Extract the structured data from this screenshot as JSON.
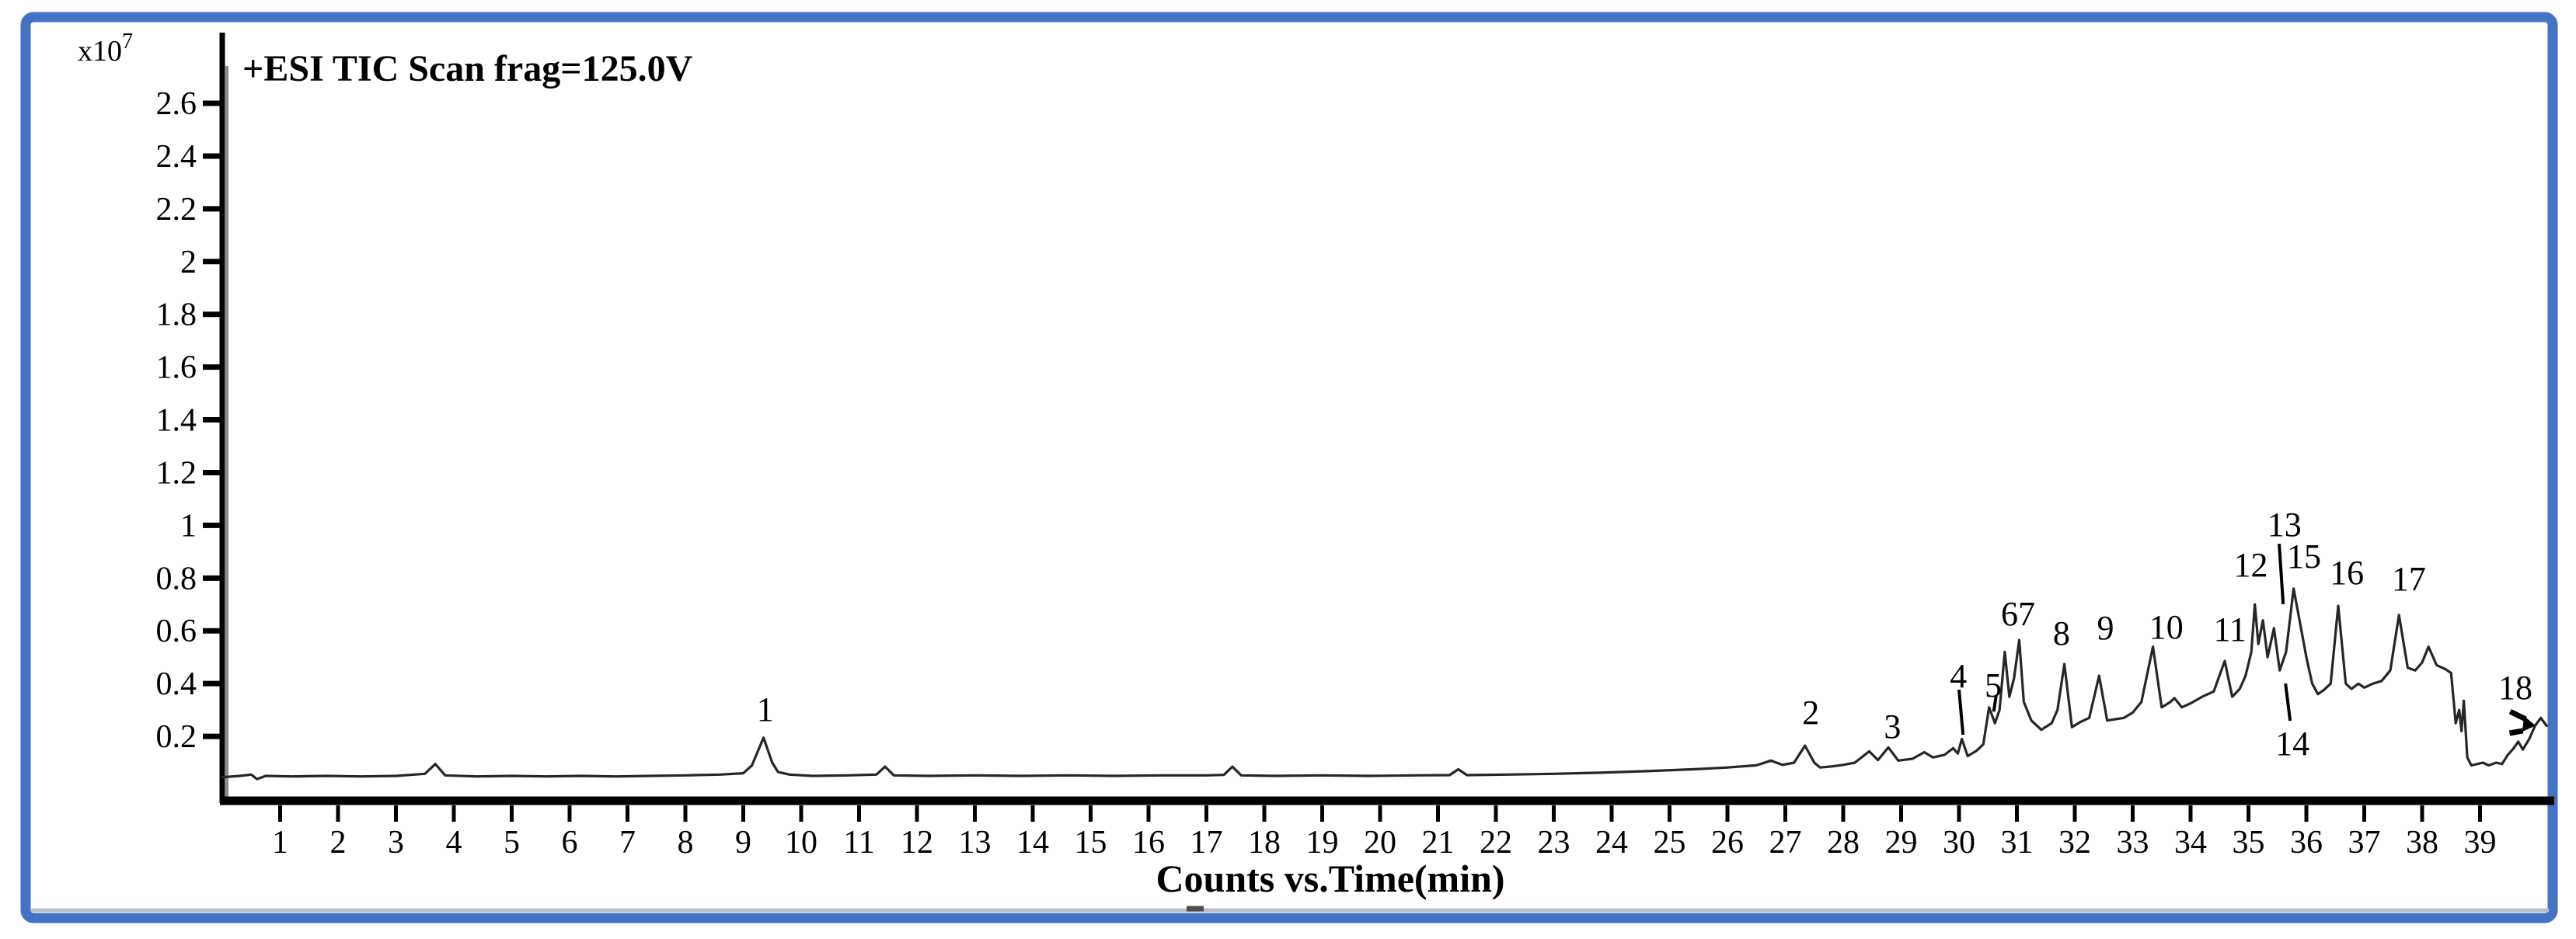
{
  "figure": {
    "title": "+ESI TIC Scan frag=125.0V",
    "y_scale_base": "x10",
    "y_scale_exponent": "7",
    "x_axis_title": "Counts vs.Time(min)",
    "border_color": "#4472C4",
    "background_color": "#ffffff",
    "axis_color": "#000000",
    "trace_color": "#262626",
    "shadow_gray": "#8a8a8a",
    "footer_rule_gray": "#b6bdc6"
  },
  "chart_data": {
    "type": "line",
    "title": "+ESI TIC Scan frag=125.0V",
    "xlabel": "Counts vs.Time(min)",
    "ylabel": "x10^7",
    "series_name": "Total Ion Chromatogram",
    "grid": false,
    "legend": "none",
    "xlim": [
      0,
      40.2
    ],
    "ylim": [
      0,
      2.75
    ],
    "x_ticks": [
      1,
      2,
      3,
      4,
      5,
      6,
      7,
      8,
      9,
      10,
      11,
      12,
      13,
      14,
      15,
      16,
      17,
      18,
      19,
      20,
      21,
      22,
      23,
      24,
      25,
      26,
      27,
      28,
      29,
      30,
      31,
      32,
      33,
      34,
      35,
      36,
      37,
      38,
      39
    ],
    "y_ticks": [
      {
        "value": 0.2,
        "label": "0.2"
      },
      {
        "value": 0.4,
        "label": "0.4"
      },
      {
        "value": 0.6,
        "label": "0.6"
      },
      {
        "value": 0.8,
        "label": "0.8"
      },
      {
        "value": 1.0,
        "label": "1"
      },
      {
        "value": 1.2,
        "label": "1.2"
      },
      {
        "value": 1.4,
        "label": "1.4"
      },
      {
        "value": 1.6,
        "label": "1.6"
      },
      {
        "value": 1.8,
        "label": "1.8"
      },
      {
        "value": 2.0,
        "label": "2"
      },
      {
        "value": 2.2,
        "label": "2.2"
      },
      {
        "value": 2.4,
        "label": "2.4"
      },
      {
        "value": 2.6,
        "label": "2.6"
      }
    ],
    "peaks": [
      {
        "number": 1,
        "rt_min": 9.35,
        "height_x1e7": 0.2
      },
      {
        "number": 2,
        "rt_min": 27.35,
        "height_x1e7": 0.17
      },
      {
        "number": 3,
        "rt_min": 28.8,
        "height_x1e7": 0.16
      },
      {
        "number": 4,
        "rt_min": 30.05,
        "height_x1e7": 0.19
      },
      {
        "number": 5,
        "rt_min": 30.5,
        "height_x1e7": 0.31
      },
      {
        "number": 6,
        "rt_min": 30.8,
        "height_x1e7": 0.52
      },
      {
        "number": 7,
        "rt_min": 31.0,
        "height_x1e7": 0.57
      },
      {
        "number": 8,
        "rt_min": 31.8,
        "height_x1e7": 0.47
      },
      {
        "number": 9,
        "rt_min": 32.4,
        "height_x1e7": 0.43
      },
      {
        "number": 10,
        "rt_min": 33.35,
        "height_x1e7": 0.54
      },
      {
        "number": 11,
        "rt_min": 34.6,
        "height_x1e7": 0.49
      },
      {
        "number": 12,
        "rt_min": 35.1,
        "height_x1e7": 0.7
      },
      {
        "number": 13,
        "rt_min": 35.8,
        "height_x1e7": 0.76
      },
      {
        "number": 14,
        "rt_min": 35.45,
        "height_x1e7": 0.61
      },
      {
        "number": 15,
        "rt_min": 35.9,
        "height_x1e7": 0.62
      },
      {
        "number": 16,
        "rt_min": 36.55,
        "height_x1e7": 0.7
      },
      {
        "number": 17,
        "rt_min": 37.6,
        "height_x1e7": 0.66
      },
      {
        "number": 18,
        "rt_min": 40.0,
        "height_x1e7": 0.27
      }
    ],
    "peak_labels": [
      {
        "text": "1",
        "t": 9.38,
        "v": 0.303
      },
      {
        "text": "2",
        "t": 27.44,
        "v": 0.291
      },
      {
        "text": "3",
        "t": 28.85,
        "v": 0.238
      },
      {
        "text": "4",
        "t": 29.99,
        "v": 0.43
      },
      {
        "text": "5",
        "t": 30.59,
        "v": 0.395
      },
      {
        "text": "67",
        "t": 31.02,
        "v": 0.665
      },
      {
        "text": "8",
        "t": 31.77,
        "v": 0.592
      },
      {
        "text": "9",
        "t": 32.53,
        "v": 0.612
      },
      {
        "text": "10",
        "t": 33.58,
        "v": 0.615
      },
      {
        "text": "11",
        "t": 34.68,
        "v": 0.607
      },
      {
        "text": "12",
        "t": 35.04,
        "v": 0.851
      },
      {
        "text": "13",
        "t": 35.62,
        "v": 1.004
      },
      {
        "text": "14",
        "t": 35.76,
        "v": 0.174
      },
      {
        "text": "15",
        "t": 35.96,
        "v": 0.883
      },
      {
        "text": "16",
        "t": 36.7,
        "v": 0.821
      },
      {
        "text": "17",
        "t": 37.77,
        "v": 0.798
      },
      {
        "text": "18",
        "t": 39.61,
        "v": 0.386
      }
    ],
    "pointer_lines": [
      {
        "from_t": 30.0,
        "from_v": 0.377,
        "to_t": 30.07,
        "to_v": 0.206
      },
      {
        "from_t": 30.64,
        "from_v": 0.353,
        "to_t": 30.6,
        "to_v": 0.294
      },
      {
        "from_t": 35.53,
        "from_v": 0.93,
        "to_t": 35.6,
        "to_v": 0.701
      },
      {
        "from_t": 35.72,
        "from_v": 0.259,
        "to_t": 35.64,
        "to_v": 0.4
      }
    ],
    "arrow_18": {
      "lines": [
        {
          "from_t": 39.52,
          "from_v": 0.294,
          "to_t": 39.79,
          "to_v": 0.265
        },
        {
          "from_t": 39.51,
          "from_v": 0.212,
          "to_t": 39.74,
          "to_v": 0.221
        }
      ],
      "head": [
        [
          39.96,
          0.241
        ],
        [
          39.76,
          0.277
        ],
        [
          39.73,
          0.218
        ]
      ]
    },
    "points": [
      [
        0.0,
        0.045
      ],
      [
        0.3,
        0.05
      ],
      [
        0.5,
        0.055
      ],
      [
        0.6,
        0.038
      ],
      [
        0.75,
        0.05
      ],
      [
        1.2,
        0.048
      ],
      [
        1.8,
        0.05
      ],
      [
        2.4,
        0.048
      ],
      [
        3.0,
        0.05
      ],
      [
        3.5,
        0.058
      ],
      [
        3.68,
        0.095
      ],
      [
        3.85,
        0.052
      ],
      [
        4.4,
        0.048
      ],
      [
        5.0,
        0.05
      ],
      [
        5.6,
        0.048
      ],
      [
        6.2,
        0.05
      ],
      [
        6.8,
        0.048
      ],
      [
        7.4,
        0.05
      ],
      [
        8.0,
        0.052
      ],
      [
        8.6,
        0.055
      ],
      [
        9.0,
        0.06
      ],
      [
        9.15,
        0.09
      ],
      [
        9.35,
        0.195
      ],
      [
        9.5,
        0.1
      ],
      [
        9.6,
        0.065
      ],
      [
        9.8,
        0.055
      ],
      [
        10.2,
        0.05
      ],
      [
        10.8,
        0.052
      ],
      [
        11.3,
        0.055
      ],
      [
        11.45,
        0.085
      ],
      [
        11.6,
        0.052
      ],
      [
        12.2,
        0.05
      ],
      [
        13.0,
        0.052
      ],
      [
        13.8,
        0.05
      ],
      [
        14.6,
        0.052
      ],
      [
        15.4,
        0.05
      ],
      [
        16.2,
        0.052
      ],
      [
        17.0,
        0.052
      ],
      [
        17.3,
        0.054
      ],
      [
        17.45,
        0.085
      ],
      [
        17.6,
        0.052
      ],
      [
        18.2,
        0.05
      ],
      [
        19.0,
        0.052
      ],
      [
        19.8,
        0.05
      ],
      [
        20.6,
        0.052
      ],
      [
        21.2,
        0.053
      ],
      [
        21.35,
        0.075
      ],
      [
        21.5,
        0.053
      ],
      [
        22.2,
        0.055
      ],
      [
        23.0,
        0.058
      ],
      [
        23.8,
        0.062
      ],
      [
        24.6,
        0.068
      ],
      [
        25.4,
        0.075
      ],
      [
        26.0,
        0.082
      ],
      [
        26.5,
        0.09
      ],
      [
        26.75,
        0.108
      ],
      [
        26.95,
        0.092
      ],
      [
        27.15,
        0.1
      ],
      [
        27.34,
        0.165
      ],
      [
        27.5,
        0.1
      ],
      [
        27.6,
        0.082
      ],
      [
        27.8,
        0.086
      ],
      [
        28.0,
        0.092
      ],
      [
        28.2,
        0.1
      ],
      [
        28.45,
        0.143
      ],
      [
        28.6,
        0.11
      ],
      [
        28.78,
        0.158
      ],
      [
        28.95,
        0.108
      ],
      [
        29.2,
        0.115
      ],
      [
        29.4,
        0.14
      ],
      [
        29.55,
        0.12
      ],
      [
        29.75,
        0.13
      ],
      [
        29.9,
        0.155
      ],
      [
        29.98,
        0.135
      ],
      [
        30.05,
        0.19
      ],
      [
        30.15,
        0.125
      ],
      [
        30.3,
        0.145
      ],
      [
        30.42,
        0.17
      ],
      [
        30.52,
        0.31
      ],
      [
        30.62,
        0.25
      ],
      [
        30.7,
        0.3
      ],
      [
        30.79,
        0.52
      ],
      [
        30.87,
        0.35
      ],
      [
        30.95,
        0.42
      ],
      [
        31.04,
        0.565
      ],
      [
        31.12,
        0.33
      ],
      [
        31.25,
        0.26
      ],
      [
        31.42,
        0.225
      ],
      [
        31.6,
        0.25
      ],
      [
        31.7,
        0.3
      ],
      [
        31.82,
        0.474
      ],
      [
        31.95,
        0.235
      ],
      [
        32.1,
        0.255
      ],
      [
        32.25,
        0.27
      ],
      [
        32.42,
        0.43
      ],
      [
        32.56,
        0.26
      ],
      [
        32.7,
        0.265
      ],
      [
        32.85,
        0.27
      ],
      [
        33.0,
        0.29
      ],
      [
        33.15,
        0.33
      ],
      [
        33.35,
        0.54
      ],
      [
        33.5,
        0.31
      ],
      [
        33.65,
        0.33
      ],
      [
        33.72,
        0.345
      ],
      [
        33.85,
        0.31
      ],
      [
        34.0,
        0.325
      ],
      [
        34.2,
        0.35
      ],
      [
        34.4,
        0.37
      ],
      [
        34.59,
        0.486
      ],
      [
        34.72,
        0.35
      ],
      [
        34.85,
        0.38
      ],
      [
        34.95,
        0.43
      ],
      [
        35.05,
        0.52
      ],
      [
        35.11,
        0.7
      ],
      [
        35.17,
        0.55
      ],
      [
        35.25,
        0.64
      ],
      [
        35.33,
        0.5
      ],
      [
        35.44,
        0.61
      ],
      [
        35.54,
        0.45
      ],
      [
        35.65,
        0.52
      ],
      [
        35.78,
        0.76
      ],
      [
        35.9,
        0.62
      ],
      [
        36.0,
        0.5
      ],
      [
        36.1,
        0.4
      ],
      [
        36.2,
        0.36
      ],
      [
        36.3,
        0.375
      ],
      [
        36.42,
        0.4
      ],
      [
        36.55,
        0.695
      ],
      [
        36.68,
        0.4
      ],
      [
        36.78,
        0.38
      ],
      [
        36.9,
        0.4
      ],
      [
        37.0,
        0.385
      ],
      [
        37.15,
        0.4
      ],
      [
        37.3,
        0.41
      ],
      [
        37.45,
        0.45
      ],
      [
        37.6,
        0.66
      ],
      [
        37.75,
        0.46
      ],
      [
        37.88,
        0.45
      ],
      [
        38.0,
        0.48
      ],
      [
        38.11,
        0.54
      ],
      [
        38.25,
        0.47
      ],
      [
        38.4,
        0.455
      ],
      [
        38.5,
        0.44
      ],
      [
        38.58,
        0.25
      ],
      [
        38.64,
        0.3
      ],
      [
        38.68,
        0.22
      ],
      [
        38.72,
        0.335
      ],
      [
        38.78,
        0.12
      ],
      [
        38.85,
        0.09
      ],
      [
        38.95,
        0.095
      ],
      [
        39.05,
        0.1
      ],
      [
        39.15,
        0.09
      ],
      [
        39.28,
        0.1
      ],
      [
        39.38,
        0.095
      ],
      [
        39.48,
        0.13
      ],
      [
        39.58,
        0.155
      ],
      [
        39.66,
        0.18
      ],
      [
        39.74,
        0.15
      ],
      [
        39.85,
        0.19
      ],
      [
        39.95,
        0.24
      ],
      [
        40.05,
        0.27
      ],
      [
        40.15,
        0.24
      ]
    ]
  }
}
